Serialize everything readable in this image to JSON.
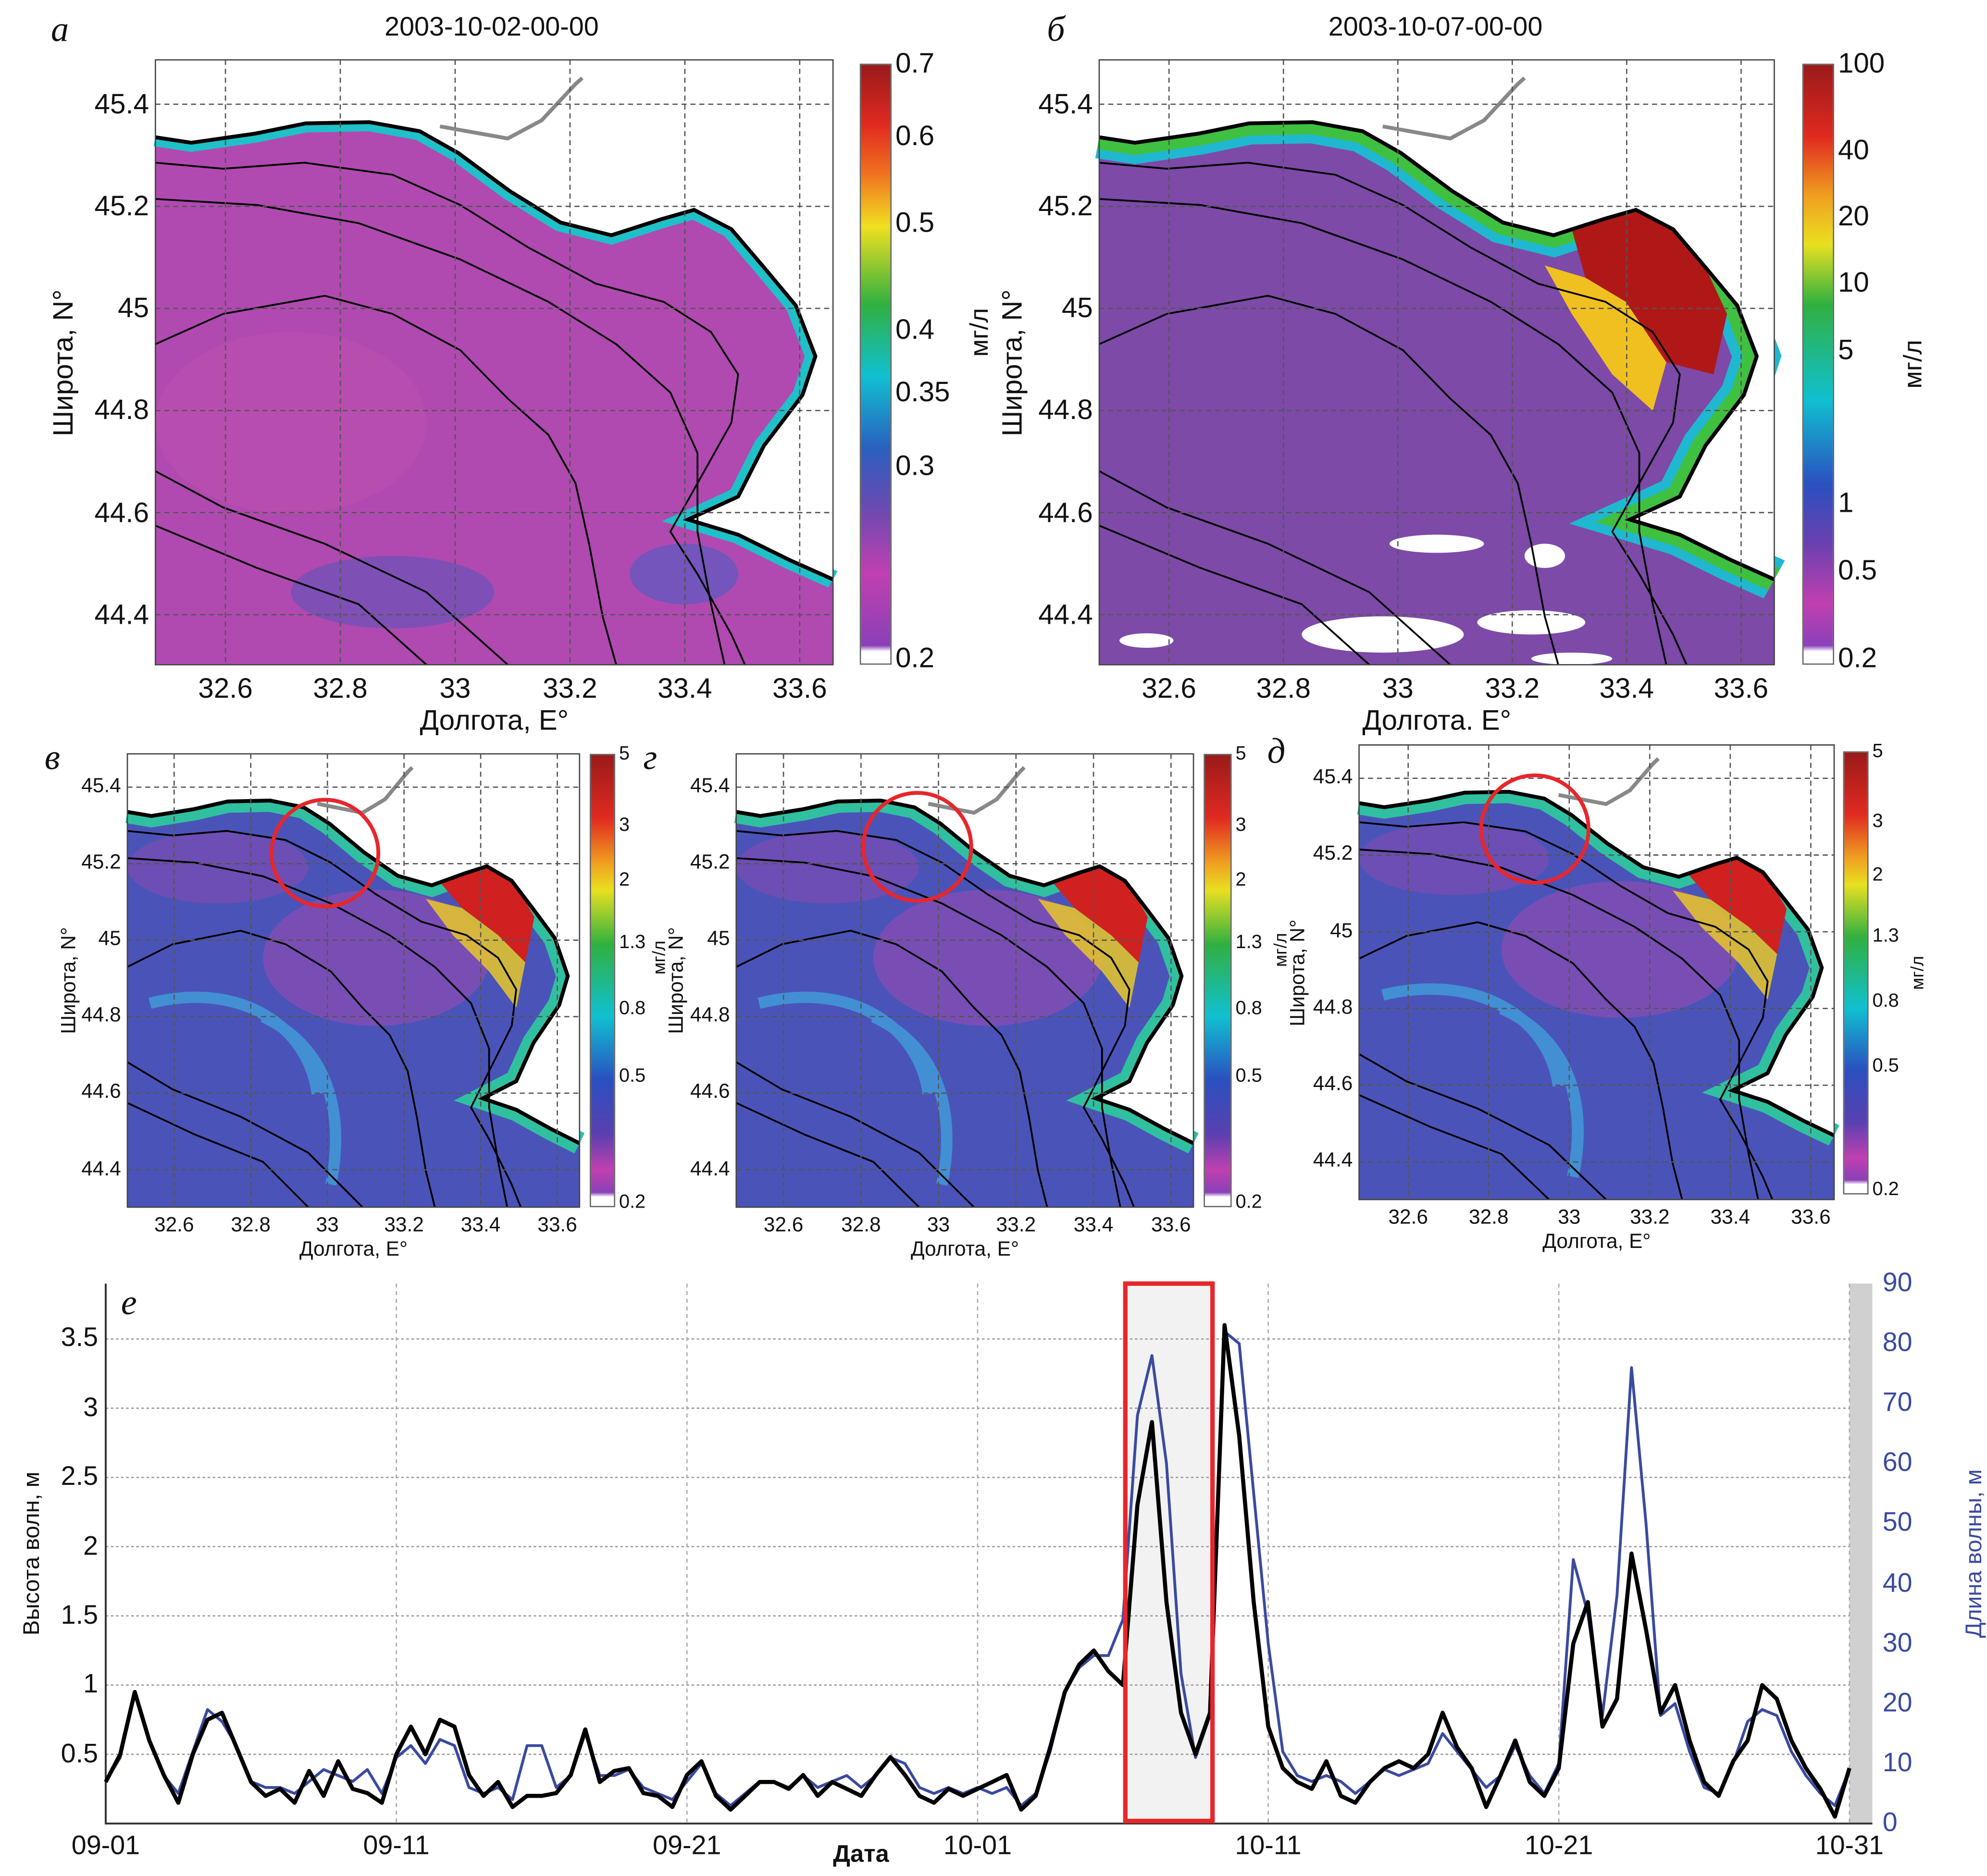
{
  "maps": [
    {
      "panel_label": "а",
      "title": "2003-10-02-00-00",
      "xlabel": "Долгота, E°",
      "ylabel": "Широта, N°",
      "ylabel_extra": "",
      "lon_ticks": [
        "32.6",
        "32.8",
        "33",
        "33.2",
        "33.4",
        "33.6"
      ],
      "lat_ticks": [
        "45.4",
        "45.2",
        "45",
        "44.8",
        "44.6",
        "44.4"
      ],
      "colorbar": {
        "ticks": [
          "0.7",
          "0.6",
          "0.5",
          "0.4",
          "0.35",
          "0.3",
          "0.2"
        ],
        "unit": ""
      },
      "highlight_circle": false
    },
    {
      "panel_label": "б",
      "title": "2003-10-07-00-00",
      "xlabel": "Долгота. E°",
      "ylabel": "Широта, N°",
      "ylabel_extra": "мг/л",
      "lon_ticks": [
        "32.6",
        "32.8",
        "33",
        "33.2",
        "33.4",
        "33.6"
      ],
      "lat_ticks": [
        "45.4",
        "45.2",
        "45",
        "44.8",
        "44.6",
        "44.4"
      ],
      "colorbar": {
        "ticks": [
          "100",
          "40",
          "20",
          "10",
          "5",
          "1",
          "0.5",
          "0.2"
        ],
        "unit": "мг/л"
      },
      "highlight_circle": false
    },
    {
      "panel_label": "в",
      "title": "",
      "xlabel": "Долгота, E°",
      "ylabel": "Широта, N°",
      "ylabel_extra": "",
      "lon_ticks": [
        "32.6",
        "32.8",
        "33",
        "33.2",
        "33.4",
        "33.6"
      ],
      "lat_ticks": [
        "45.4",
        "45.2",
        "45",
        "44.8",
        "44.6",
        "44.4"
      ],
      "colorbar": {
        "ticks": [
          "5",
          "3",
          "2",
          "1.3",
          "0.8",
          "0.5",
          "0.2"
        ],
        "unit": ""
      },
      "highlight_circle": true
    },
    {
      "panel_label": "г",
      "title": "",
      "xlabel": "Долгота, E°",
      "ylabel": "Широта, N°",
      "ylabel_extra": "мг/л",
      "lon_ticks": [
        "32.6",
        "32.8",
        "33",
        "33.2",
        "33.4",
        "33.6"
      ],
      "lat_ticks": [
        "45.4",
        "45.2",
        "45",
        "44.8",
        "44.6",
        "44.4"
      ],
      "colorbar": {
        "ticks": [
          "5",
          "3",
          "2",
          "1.3",
          "0.8",
          "0.5",
          "0.2"
        ],
        "unit": ""
      },
      "highlight_circle": true
    },
    {
      "panel_label": "д",
      "title": "",
      "xlabel": "Долгота, E°",
      "ylabel": "Широта, N°",
      "ylabel_extra": "мг/л",
      "lon_ticks": [
        "32.6",
        "32.8",
        "33",
        "33.2",
        "33.4",
        "33.6"
      ],
      "lat_ticks": [
        "45.4",
        "45.2",
        "45",
        "44.8",
        "44.6",
        "44.4"
      ],
      "colorbar": {
        "ticks": [
          "5",
          "3",
          "2",
          "1.3",
          "0.8",
          "0.5",
          "0.2"
        ],
        "unit": "мг/л"
      },
      "highlight_circle": true
    }
  ],
  "colors": {
    "highlight": "#e8262b",
    "height_series": "#000000",
    "length_series": "#3a4aa0"
  },
  "chart_data": {
    "type": "line",
    "panel_label": "е",
    "xlabel": "Дата",
    "ylabel": "Высота  волн, м",
    "ylabel_right": "Длина волны, м",
    "x_ticks": [
      "09-01",
      "09-11",
      "09-21",
      "10-01",
      "10-11",
      "10-21",
      "10-31"
    ],
    "y_ticks": [
      "0.5",
      "1",
      "1.5",
      "2",
      "2.5",
      "3",
      "3.5"
    ],
    "y_ticks_right": [
      "0",
      "10",
      "20",
      "30",
      "40",
      "50",
      "60",
      "70",
      "80",
      "90"
    ],
    "ylim": [
      0,
      3.9
    ],
    "ylim_right": [
      0,
      90
    ],
    "grid": true,
    "highlight_range": [
      "10-06 02:00",
      "10-09 02:00"
    ],
    "x": [
      "09-01 00:00",
      "09-01 12:00",
      "09-02 00:00",
      "09-02 12:00",
      "09-03 00:00",
      "09-03 12:00",
      "09-04 00:00",
      "09-04 12:00",
      "09-05 00:00",
      "09-05 12:00",
      "09-06 00:00",
      "09-06 12:00",
      "09-07 00:00",
      "09-07 12:00",
      "09-08 00:00",
      "09-08 12:00",
      "09-09 00:00",
      "09-09 12:00",
      "09-10 00:00",
      "09-10 12:00",
      "09-11 00:00",
      "09-11 12:00",
      "09-12 00:00",
      "09-12 12:00",
      "09-13 00:00",
      "09-13 12:00",
      "09-14 00:00",
      "09-14 12:00",
      "09-15 00:00",
      "09-15 12:00",
      "09-16 00:00",
      "09-16 12:00",
      "09-17 00:00",
      "09-17 12:00",
      "09-18 00:00",
      "09-18 12:00",
      "09-19 00:00",
      "09-19 12:00",
      "09-20 00:00",
      "09-20 12:00",
      "09-21 00:00",
      "09-21 12:00",
      "09-22 00:00",
      "09-22 12:00",
      "09-23 00:00",
      "09-23 12:00",
      "09-24 00:00",
      "09-24 12:00",
      "09-25 00:00",
      "09-25 12:00",
      "09-26 00:00",
      "09-26 12:00",
      "09-27 00:00",
      "09-27 12:00",
      "09-28 00:00",
      "09-28 12:00",
      "09-29 00:00",
      "09-29 12:00",
      "09-30 00:00",
      "09-30 12:00",
      "10-01 00:00",
      "10-01 12:00",
      "10-02 00:00",
      "10-02 12:00",
      "10-03 00:00",
      "10-03 12:00",
      "10-04 00:00",
      "10-04 12:00",
      "10-05 00:00",
      "10-05 12:00",
      "10-06 00:00",
      "10-06 12:00",
      "10-07 00:00",
      "10-07 12:00",
      "10-08 00:00",
      "10-08 12:00",
      "10-09 00:00",
      "10-09 12:00",
      "10-10 00:00",
      "10-10 12:00",
      "10-11 00:00",
      "10-11 12:00",
      "10-12 00:00",
      "10-12 12:00",
      "10-13 00:00",
      "10-13 12:00",
      "10-14 00:00",
      "10-14 12:00",
      "10-15 00:00",
      "10-15 12:00",
      "10-16 00:00",
      "10-16 12:00",
      "10-17 00:00",
      "10-17 12:00",
      "10-18 00:00",
      "10-18 12:00",
      "10-19 00:00",
      "10-19 12:00",
      "10-20 00:00",
      "10-20 12:00",
      "10-21 00:00",
      "10-21 12:00",
      "10-22 00:00",
      "10-22 12:00",
      "10-23 00:00",
      "10-23 12:00",
      "10-24 00:00",
      "10-24 12:00",
      "10-25 00:00",
      "10-25 12:00",
      "10-26 00:00",
      "10-26 12:00",
      "10-27 00:00",
      "10-27 12:00",
      "10-28 00:00",
      "10-28 12:00",
      "10-29 00:00",
      "10-29 12:00",
      "10-30 00:00",
      "10-30 12:00",
      "10-31 00:00"
    ],
    "series": [
      {
        "axis": "left",
        "color": "#000000",
        "values": [
          0.3,
          0.5,
          0.95,
          0.6,
          0.35,
          0.15,
          0.5,
          0.75,
          0.8,
          0.55,
          0.3,
          0.2,
          0.25,
          0.15,
          0.38,
          0.2,
          0.45,
          0.25,
          0.22,
          0.15,
          0.5,
          0.7,
          0.5,
          0.75,
          0.7,
          0.35,
          0.2,
          0.3,
          0.12,
          0.2,
          0.2,
          0.22,
          0.35,
          0.68,
          0.3,
          0.38,
          0.4,
          0.22,
          0.2,
          0.12,
          0.35,
          0.45,
          0.2,
          0.1,
          0.2,
          0.3,
          0.3,
          0.25,
          0.35,
          0.2,
          0.3,
          0.25,
          0.2,
          0.35,
          0.48,
          0.35,
          0.2,
          0.15,
          0.25,
          0.2,
          0.25,
          0.3,
          0.35,
          0.1,
          0.2,
          0.55,
          0.95,
          1.15,
          1.25,
          1.1,
          1.0,
          2.3,
          2.9,
          1.6,
          0.8,
          0.5,
          0.8,
          3.6,
          2.8,
          1.6,
          0.7,
          0.4,
          0.3,
          0.25,
          0.45,
          0.2,
          0.15,
          0.3,
          0.4,
          0.45,
          0.4,
          0.5,
          0.8,
          0.55,
          0.4,
          0.12,
          0.35,
          0.6,
          0.3,
          0.2,
          0.4,
          1.3,
          1.6,
          0.7,
          0.9,
          1.95,
          1.4,
          0.8,
          1.0,
          0.6,
          0.3,
          0.2,
          0.45,
          0.6,
          1.0,
          0.9,
          0.6,
          0.4,
          0.25,
          0.05,
          0.4
        ]
      },
      {
        "axis": "right",
        "color": "#3a4aa0",
        "values": [
          7,
          11,
          22,
          14,
          8,
          5,
          12,
          19,
          17,
          13,
          7,
          6,
          6,
          5,
          7,
          9,
          8,
          7,
          9,
          5,
          11,
          13,
          10,
          14,
          13,
          6,
          5,
          6,
          4,
          13,
          13,
          6,
          8,
          15,
          8,
          8,
          9,
          6,
          5,
          4,
          7,
          10,
          5,
          3,
          5,
          7,
          7,
          6,
          8,
          6,
          7,
          8,
          6,
          8,
          11,
          10,
          6,
          5,
          6,
          5,
          6,
          5,
          6,
          3,
          5,
          12,
          22,
          26,
          28,
          28,
          34,
          68,
          78,
          60,
          25,
          11,
          18,
          82,
          80,
          55,
          30,
          12,
          8,
          7,
          8,
          7,
          5,
          7,
          9,
          8,
          9,
          10,
          15,
          12,
          9,
          6,
          8,
          13,
          8,
          5,
          10,
          44,
          35,
          18,
          38,
          76,
          50,
          18,
          20,
          12,
          6,
          5,
          10,
          17,
          19,
          18,
          12,
          8,
          5,
          3,
          9
        ]
      }
    ]
  }
}
